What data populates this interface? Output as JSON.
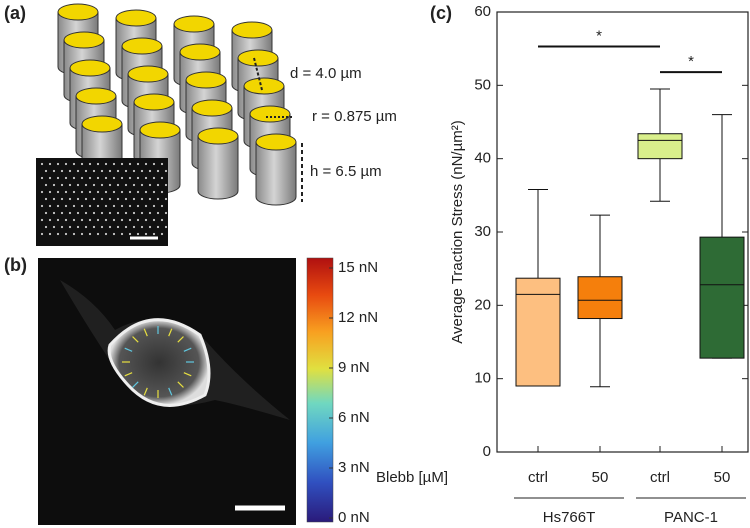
{
  "panel_a": {
    "label": "(a)",
    "annotations": [
      "d = 4.0 µm",
      "r = 0.875 µm",
      "h = 6.5 µm"
    ]
  },
  "panel_b": {
    "label": "(b)",
    "clim": [
      0,
      15
    ],
    "colorbar_ticks": [
      {
        "value": 0,
        "label": "0 nN"
      },
      {
        "value": 3,
        "label": "3 nN"
      },
      {
        "value": 6,
        "label": "6 nN"
      },
      {
        "value": 9,
        "label": "9 nN"
      },
      {
        "value": 12,
        "label": "12 nN"
      },
      {
        "value": 15,
        "label": "15 nN"
      }
    ]
  },
  "chart_data": {
    "type": "box",
    "label": "(c)",
    "y_label": "Average Traction Stress (nN/µm²)",
    "x_prefix": "Blebb [µM]",
    "categories": [
      "ctrl",
      "50",
      "ctrl",
      "50"
    ],
    "groups": [
      "Hs766T",
      "PANC-1"
    ],
    "whisker_low": [
      9,
      8.9,
      34.2,
      12.8
    ],
    "q1": [
      9,
      18.2,
      40,
      12.8
    ],
    "median": [
      21.5,
      20.7,
      42.5,
      22.8
    ],
    "q3": [
      23.7,
      23.9,
      43.4,
      29.3
    ],
    "whisker_high": [
      35.8,
      32.3,
      49.5,
      46
    ],
    "colors": [
      "#fdbf80",
      "#f57f0c",
      "#d9ef8b",
      "#2e6b35"
    ],
    "significance": [
      {
        "label": "*",
        "from": 0,
        "to": 2,
        "y": 55.3
      },
      {
        "label": "*",
        "from": 2,
        "to": 3,
        "y": 51.8
      }
    ],
    "ylim": [
      0,
      60
    ],
    "yticks": [
      0,
      10,
      20,
      30,
      40,
      50,
      60
    ]
  }
}
